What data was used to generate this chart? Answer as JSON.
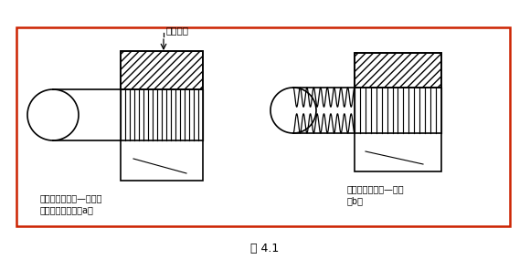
{
  "bg_color": "#ffffff",
  "border_color": "#cc2200",
  "line_color": "#000000",
  "fig_label": "图 4.1",
  "label_a": "钢筋直螺纹环规—通端螺\n纹有效长度环规（a）",
  "label_b": "钢筋直螺纹环规—止端\n（b）",
  "annotation": "允许误差",
  "border_lw": 1.8,
  "drawing_lw": 1.2
}
